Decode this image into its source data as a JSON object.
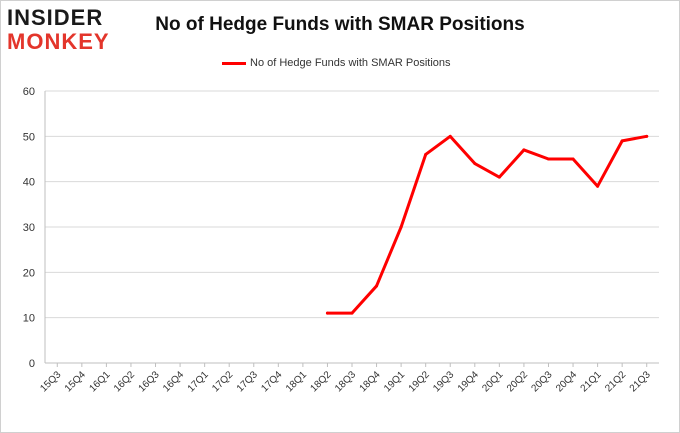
{
  "logo": {
    "line1": "INSIDER",
    "line2": "MONKEY"
  },
  "chart_data": {
    "type": "line",
    "title": "No of Hedge Funds with SMAR Positions",
    "xlabel": "",
    "ylabel": "",
    "ylim": [
      0,
      60
    ],
    "yticks": [
      0,
      10,
      20,
      30,
      40,
      50,
      60
    ],
    "grid": true,
    "legend": "top-center",
    "categories": [
      "15Q3",
      "15Q4",
      "16Q1",
      "16Q2",
      "16Q3",
      "16Q4",
      "17Q1",
      "17Q2",
      "17Q3",
      "17Q4",
      "18Q1",
      "18Q2",
      "18Q3",
      "18Q4",
      "19Q1",
      "19Q2",
      "19Q3",
      "19Q4",
      "20Q1",
      "20Q2",
      "20Q3",
      "20Q4",
      "21Q1",
      "21Q2",
      "21Q3"
    ],
    "series": [
      {
        "name": "No of Hedge Funds with SMAR Positions",
        "color": "#ff0000",
        "values": [
          null,
          null,
          null,
          null,
          null,
          null,
          null,
          null,
          null,
          null,
          null,
          11,
          11,
          17,
          30,
          46,
          50,
          44,
          41,
          47,
          45,
          45,
          39,
          49,
          50
        ]
      }
    ]
  }
}
